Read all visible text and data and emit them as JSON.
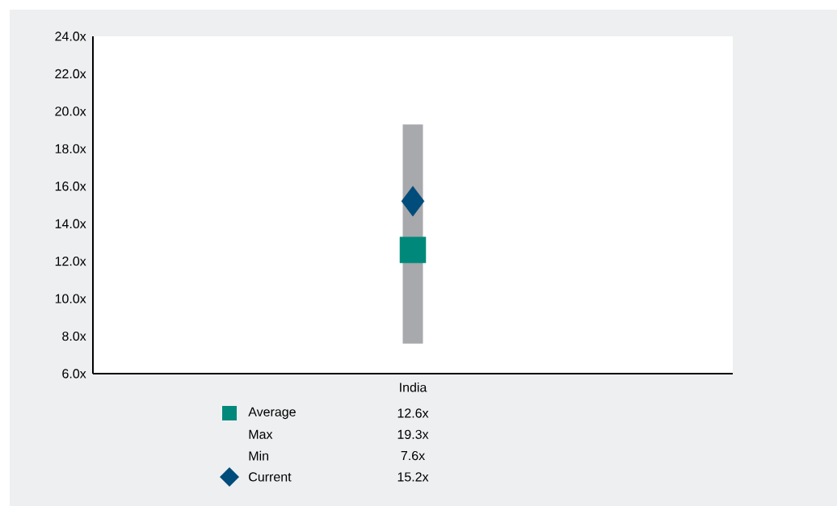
{
  "chart_data": {
    "type": "bar",
    "categories": [
      "India"
    ],
    "series": [
      {
        "color": "#a7a9ac",
        "base": [
          7.6
        ],
        "values": [
          11.7
        ]
      },
      {
        "name": "Average",
        "type": "scatter",
        "marker": "square",
        "color": "#00897b",
        "values": [
          12.6
        ]
      },
      {
        "name": "Current",
        "type": "scatter",
        "marker": "diamond",
        "color": "#004c7a",
        "values": [
          15.2
        ]
      }
    ],
    "annotations": [
      "12.6x",
      "Max",
      "19.3x",
      "Min",
      "7.6x",
      "15.2x"
    ],
    "ylim": [
      6,
      24
    ],
    "yticks": [
      {
        "value": 6,
        "label": "6.0x"
      },
      {
        "value": 8,
        "label": "8.0x"
      },
      {
        "value": 10,
        "label": "10.0x"
      },
      {
        "value": 12,
        "label": "12.0x"
      },
      {
        "value": 14,
        "label": "14.0x"
      },
      {
        "value": 16,
        "label": "16.0x"
      },
      {
        "value": 18,
        "label": "18.0x"
      },
      {
        "value": 20,
        "label": "20.0x"
      },
      {
        "value": 22,
        "label": "22.0x"
      },
      {
        "value": 24,
        "label": "24.0x"
      }
    ],
    "legend": "bottom",
    "grid": false
  }
}
